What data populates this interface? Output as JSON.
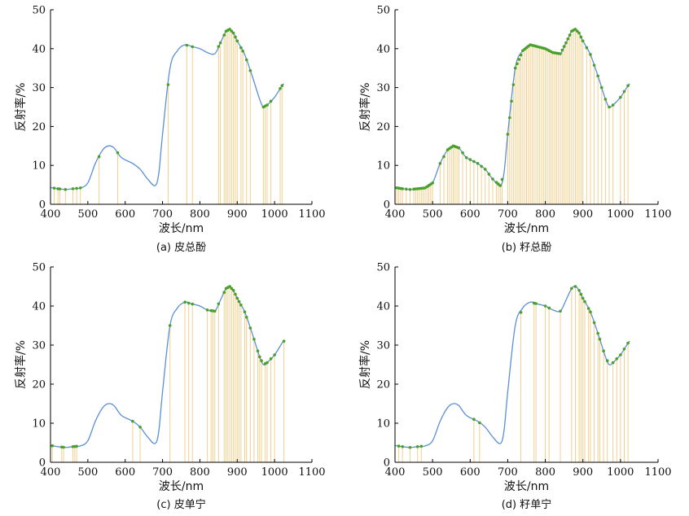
{
  "chart_data": [
    {
      "type": "line",
      "caption": "(a) 皮总酚",
      "xlabel": "波长/nm",
      "ylabel": "反射率/%",
      "xlim": [
        400,
        1100
      ],
      "ylim": [
        0,
        50
      ],
      "xticks": [
        400,
        500,
        600,
        700,
        800,
        900,
        1000,
        1100
      ],
      "yticks": [
        0,
        10,
        20,
        30,
        40,
        50
      ],
      "curve": {
        "x": [
          400,
          420,
          440,
          460,
          480,
          500,
          520,
          540,
          555,
          570,
          590,
          620,
          640,
          660,
          680,
          690,
          700,
          720,
          740,
          760,
          780,
          800,
          820,
          840,
          855,
          870,
          880,
          890,
          900,
          920,
          940,
          960,
          970,
          980,
          1000,
          1020,
          1025
        ],
        "y": [
          4.3,
          4.0,
          3.8,
          4.0,
          4.2,
          5.5,
          10.5,
          14.0,
          15.0,
          14.5,
          12.0,
          10.5,
          9.0,
          6.5,
          4.8,
          8.0,
          18.0,
          35.0,
          39.5,
          41.0,
          40.5,
          40.0,
          39.0,
          38.7,
          41.5,
          44.5,
          45.0,
          44.0,
          42.0,
          38.5,
          33.0,
          27.0,
          25.0,
          25.5,
          27.5,
          30.5,
          31.0
        ]
      },
      "markers": [
        410,
        420,
        425,
        440,
        460,
        470,
        480,
        530,
        580,
        715,
        765,
        780,
        850,
        855,
        865,
        870,
        875,
        880,
        885,
        890,
        895,
        900,
        910,
        915,
        925,
        935,
        970,
        975,
        980,
        990,
        1015,
        1020
      ]
    },
    {
      "type": "line",
      "caption": "(b) 籽总酚",
      "xlabel": "波长/nm",
      "ylabel": "反射率/%",
      "xlim": [
        400,
        1100
      ],
      "ylim": [
        0,
        50
      ],
      "xticks": [
        400,
        500,
        600,
        700,
        800,
        900,
        1000,
        1100
      ],
      "yticks": [
        0,
        10,
        20,
        30,
        40,
        50
      ],
      "curve": {
        "x": [
          400,
          420,
          440,
          460,
          480,
          500,
          520,
          540,
          555,
          570,
          590,
          620,
          640,
          660,
          680,
          690,
          700,
          720,
          740,
          760,
          780,
          800,
          820,
          840,
          855,
          870,
          880,
          890,
          900,
          920,
          940,
          960,
          970,
          980,
          1000,
          1020,
          1025
        ],
        "y": [
          4.3,
          4.0,
          3.8,
          4.0,
          4.2,
          5.5,
          10.5,
          14.0,
          15.0,
          14.5,
          12.0,
          10.5,
          9.0,
          6.5,
          4.8,
          8.0,
          18.0,
          35.0,
          39.5,
          41.0,
          40.5,
          40.0,
          39.0,
          38.7,
          41.5,
          44.5,
          45.0,
          44.0,
          42.0,
          38.5,
          33.0,
          27.0,
          25.0,
          25.5,
          27.5,
          30.5,
          31.0
        ]
      },
      "markers": [
        405,
        410,
        415,
        420,
        430,
        440,
        450,
        455,
        460,
        465,
        470,
        475,
        480,
        485,
        490,
        495,
        500,
        520,
        530,
        540,
        545,
        550,
        555,
        560,
        565,
        570,
        580,
        590,
        600,
        610,
        620,
        630,
        640,
        650,
        660,
        670,
        675,
        680,
        685,
        700,
        705,
        710,
        715,
        720,
        725,
        730,
        735,
        740,
        745,
        750,
        755,
        760,
        765,
        770,
        775,
        780,
        785,
        790,
        795,
        800,
        805,
        810,
        815,
        820,
        825,
        830,
        835,
        840,
        845,
        850,
        855,
        860,
        865,
        870,
        875,
        880,
        885,
        890,
        895,
        900,
        910,
        920,
        930,
        940,
        950,
        960,
        970,
        980,
        1000,
        1010,
        1020
      ]
    },
    {
      "type": "line",
      "caption": "(c) 皮单宁",
      "xlabel": "波长/nm",
      "ylabel": "反射率/%",
      "xlim": [
        400,
        1100
      ],
      "ylim": [
        0,
        50
      ],
      "xticks": [
        400,
        500,
        600,
        700,
        800,
        900,
        1000,
        1100
      ],
      "yticks": [
        0,
        10,
        20,
        30,
        40,
        50
      ],
      "curve": {
        "x": [
          400,
          420,
          440,
          460,
          480,
          500,
          520,
          540,
          555,
          570,
          590,
          620,
          640,
          660,
          680,
          690,
          700,
          720,
          740,
          760,
          780,
          800,
          820,
          840,
          855,
          870,
          880,
          890,
          900,
          920,
          940,
          960,
          970,
          980,
          1000,
          1020,
          1025
        ],
        "y": [
          4.3,
          4.0,
          3.8,
          4.0,
          4.2,
          5.5,
          10.5,
          14.0,
          15.0,
          14.5,
          12.0,
          10.5,
          9.0,
          6.5,
          4.8,
          8.0,
          18.0,
          35.0,
          39.5,
          41.0,
          40.5,
          40.0,
          39.0,
          38.7,
          41.5,
          44.5,
          45.0,
          44.0,
          42.0,
          38.5,
          33.0,
          27.0,
          25.0,
          25.5,
          27.5,
          30.5,
          31.0
        ]
      },
      "markers": [
        405,
        430,
        435,
        460,
        465,
        470,
        620,
        640,
        720,
        760,
        770,
        780,
        820,
        830,
        835,
        840,
        850,
        865,
        870,
        875,
        880,
        885,
        890,
        895,
        900,
        905,
        910,
        920,
        925,
        935,
        945,
        955,
        960,
        965,
        975,
        980,
        990,
        1000,
        1025
      ]
    },
    {
      "type": "line",
      "caption": "(d) 籽单宁",
      "xlabel": "波长/nm",
      "ylabel": "反射率/%",
      "xlim": [
        400,
        1100
      ],
      "ylim": [
        0,
        50
      ],
      "xticks": [
        400,
        500,
        600,
        700,
        800,
        900,
        1000,
        1100
      ],
      "yticks": [
        0,
        10,
        20,
        30,
        40,
        50
      ],
      "curve": {
        "x": [
          400,
          420,
          440,
          460,
          480,
          500,
          520,
          540,
          555,
          570,
          590,
          620,
          640,
          660,
          680,
          690,
          700,
          720,
          740,
          760,
          780,
          800,
          820,
          840,
          855,
          870,
          880,
          890,
          900,
          920,
          940,
          960,
          970,
          980,
          1000,
          1020,
          1025
        ],
        "y": [
          4.3,
          4.0,
          3.8,
          4.0,
          4.2,
          5.5,
          10.5,
          14.0,
          15.0,
          14.5,
          12.0,
          10.5,
          9.0,
          6.5,
          4.8,
          8.0,
          18.0,
          35.0,
          39.5,
          41.0,
          40.5,
          40.0,
          39.0,
          38.7,
          41.5,
          44.5,
          45.0,
          44.0,
          42.0,
          38.5,
          33.0,
          27.0,
          25.0,
          25.5,
          27.5,
          30.5,
          31.0
        ]
      },
      "markers": [
        410,
        420,
        440,
        460,
        470,
        610,
        625,
        735,
        770,
        775,
        800,
        810,
        840,
        870,
        880,
        890,
        895,
        900,
        905,
        915,
        920,
        930,
        940,
        945,
        955,
        965,
        980,
        990,
        1000,
        1010,
        1020
      ]
    }
  ],
  "colors": {
    "curve": "#5b8fd6",
    "marker_line": "#f2c77a",
    "marker_dot": "#4aa02c"
  }
}
